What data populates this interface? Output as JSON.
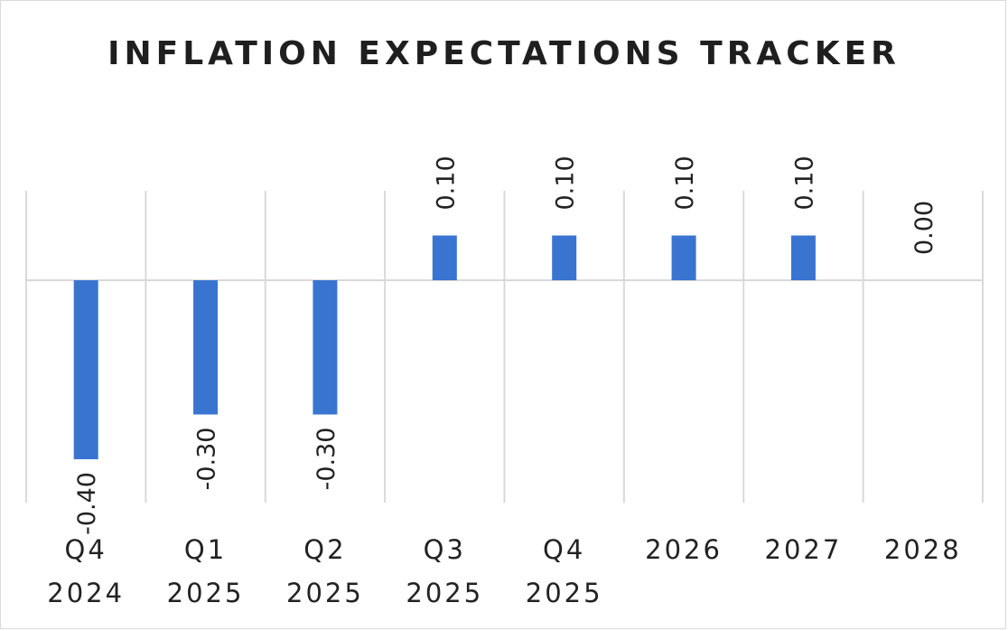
{
  "chart_data": {
    "type": "bar",
    "title": "INFLATION EXPECTATIONS TRACKER",
    "categories": [
      [
        "Q4",
        "2024"
      ],
      [
        "Q1",
        "2025"
      ],
      [
        "Q2",
        "2025"
      ],
      [
        "Q3",
        "2025"
      ],
      [
        "Q4",
        "2025"
      ],
      [
        "2026"
      ],
      [
        "2027"
      ],
      [
        "2028"
      ]
    ],
    "values": [
      -0.4,
      -0.3,
      -0.3,
      0.1,
      0.1,
      0.1,
      0.1,
      0.0
    ],
    "data_labels": [
      "-0.40",
      "-0.30",
      "-0.30",
      "0.10",
      "0.10",
      "0.10",
      "0.10",
      "0.00"
    ],
    "xlabel": "",
    "ylabel": "",
    "ylim": [
      -0.5,
      0.2
    ],
    "bar_color": "#3a74d1",
    "grid": "vertical"
  }
}
